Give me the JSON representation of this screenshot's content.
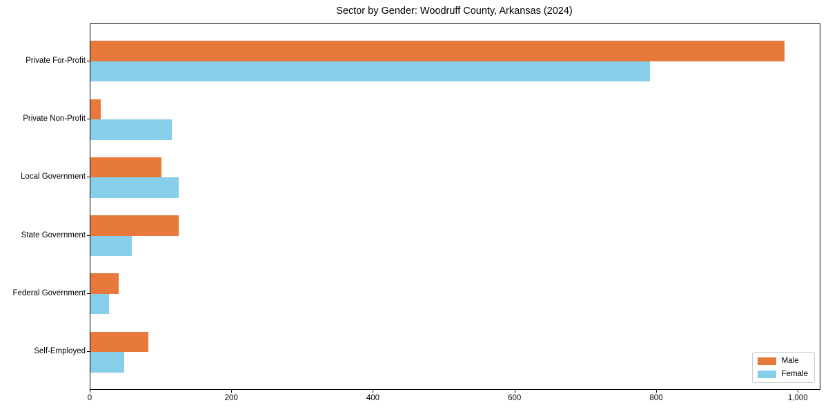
{
  "chart_data": {
    "type": "bar",
    "orientation": "horizontal",
    "title": "Sector by Gender: Woodruff County, Arkansas (2024)",
    "categories": [
      "Private For-Profit",
      "Private Non-Profit",
      "Local Government",
      "State Government",
      "Federal Government",
      "Self-Employed"
    ],
    "series": [
      {
        "name": "Male",
        "color": "#e8793c",
        "values": [
          980,
          15,
          100,
          125,
          40,
          82
        ]
      },
      {
        "name": "Female",
        "color": "#87ceeb",
        "values": [
          790,
          115,
          125,
          58,
          26,
          48
        ]
      }
    ],
    "xlabel": "",
    "ylabel": "",
    "xlim": [
      0,
      1030
    ],
    "xticks": {
      "values": [
        0,
        200,
        400,
        600,
        800,
        1000
      ],
      "labels": [
        "0",
        "200",
        "400",
        "600",
        "800",
        "1,000"
      ]
    },
    "grid": false,
    "legend_position": "lower right",
    "frame": "full-box"
  }
}
